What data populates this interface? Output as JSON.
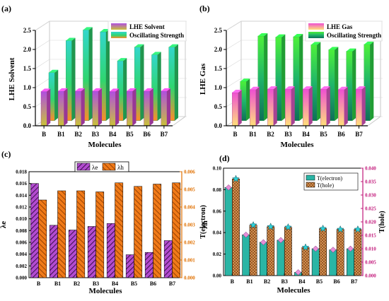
{
  "chart_data": [
    {
      "panel": "(a)",
      "type": "bar",
      "categories": [
        "B",
        "B1",
        "B2",
        "B3",
        "B4",
        "B5",
        "B6",
        "B7"
      ],
      "xlabel": "Molecules",
      "ylabel": "LHE Solvent",
      "ylim": [
        0,
        2.5
      ],
      "yticks": [
        "0.0",
        "0.5",
        "1.0",
        "1.5",
        "2.0",
        "2.5"
      ],
      "series": [
        {
          "name": "LHE Solvent",
          "values": [
            0.9,
            0.91,
            0.91,
            0.91,
            0.9,
            0.91,
            0.91,
            0.91
          ]
        },
        {
          "name": "Oscillating Strength",
          "values": [
            1.26,
            2.1,
            2.38,
            2.33,
            1.57,
            1.93,
            1.73,
            1.93
          ]
        }
      ],
      "colors": [
        "#d94fd6",
        "#2fd66f"
      ],
      "legend": "top-right"
    },
    {
      "panel": "(b)",
      "type": "bar",
      "categories": [
        "B",
        "B1",
        "B2",
        "B3",
        "B4",
        "B5",
        "B6",
        "B7"
      ],
      "xlabel": "Molecules",
      "ylabel": "LHE Gas",
      "ylim": [
        0,
        2.5
      ],
      "yticks": [
        "0.0",
        "0.5",
        "1.0",
        "1.5",
        "2.0",
        "2.5"
      ],
      "series": [
        {
          "name": "LHE Gas",
          "values": [
            0.87,
            0.95,
            0.96,
            0.96,
            0.96,
            0.96,
            0.95,
            0.96
          ]
        },
        {
          "name": "Oscillating Strength",
          "values": [
            1.03,
            2.22,
            2.19,
            2.2,
            1.99,
            1.86,
            1.82,
            2.0
          ]
        }
      ],
      "colors": [
        "#ef5fd2",
        "#2fe04a"
      ],
      "legend": "top-right"
    },
    {
      "panel": "(c)",
      "type": "bar",
      "categories": [
        "B",
        "B1",
        "B2",
        "B3",
        "B4",
        "B5",
        "B6",
        "B7"
      ],
      "xlabel": "Molecules",
      "ylabel_left": "λe",
      "ylabel_right": "λh",
      "ylim_left": [
        0,
        0.018
      ],
      "ylim_right": [
        0,
        0.006
      ],
      "yticks_left": [
        "0.000",
        "0.002",
        "0.004",
        "0.006",
        "0.008",
        "0.010",
        "0.012",
        "0.014",
        "0.016",
        "0.018"
      ],
      "yticks_right": [
        "0.000",
        "0.001",
        "0.002",
        "0.003",
        "0.004",
        "0.005",
        "0.006"
      ],
      "series": [
        {
          "name": "λe",
          "axis": "left",
          "values": [
            0.016,
            0.0089,
            0.0081,
            0.0087,
            0.0092,
            0.0039,
            0.0043,
            0.0063
          ]
        },
        {
          "name": "λh",
          "axis": "right",
          "values": [
            0.0044,
            0.00492,
            0.00492,
            0.00486,
            0.00537,
            0.00517,
            0.0053,
            0.00537
          ]
        }
      ],
      "colors": [
        "#9a2fb0",
        "#e06b10"
      ],
      "right_axis_color": "#e07000",
      "legend": "top-center"
    },
    {
      "panel": "(d)",
      "type": "bar",
      "categories": [
        "B",
        "B1",
        "B2",
        "B3",
        "B4",
        "B5",
        "B6",
        "B7"
      ],
      "xlabel": "Molecules",
      "ylabel_left": "T(electron)",
      "ylabel_right": "T(hole)",
      "ylim_left": [
        0,
        0.1
      ],
      "ylim_right": [
        0,
        0.04
      ],
      "yticks_left": [
        "0.00",
        "0.02",
        "0.04",
        "0.06",
        "0.08",
        "0.10"
      ],
      "yticks_right": [
        "0.000",
        "0.005",
        "0.010",
        "0.015",
        "0.020",
        "0.025",
        "0.030",
        "0.035",
        "0.040"
      ],
      "series": [
        {
          "name": "T(electron)",
          "axis": "left",
          "values": [
            0.082,
            0.038,
            0.031,
            0.033,
            0.003,
            0.025,
            0.024,
            0.025
          ]
        },
        {
          "name": "T(hole)",
          "axis": "right",
          "values": [
            0.036,
            0.0188,
            0.0182,
            0.018,
            0.0105,
            0.0175,
            0.0172,
            0.0172
          ]
        }
      ],
      "colors": [
        "#2ab5a5",
        "#d98a45"
      ],
      "right_axis_color": "#c2187a",
      "legend": "top-right"
    }
  ]
}
